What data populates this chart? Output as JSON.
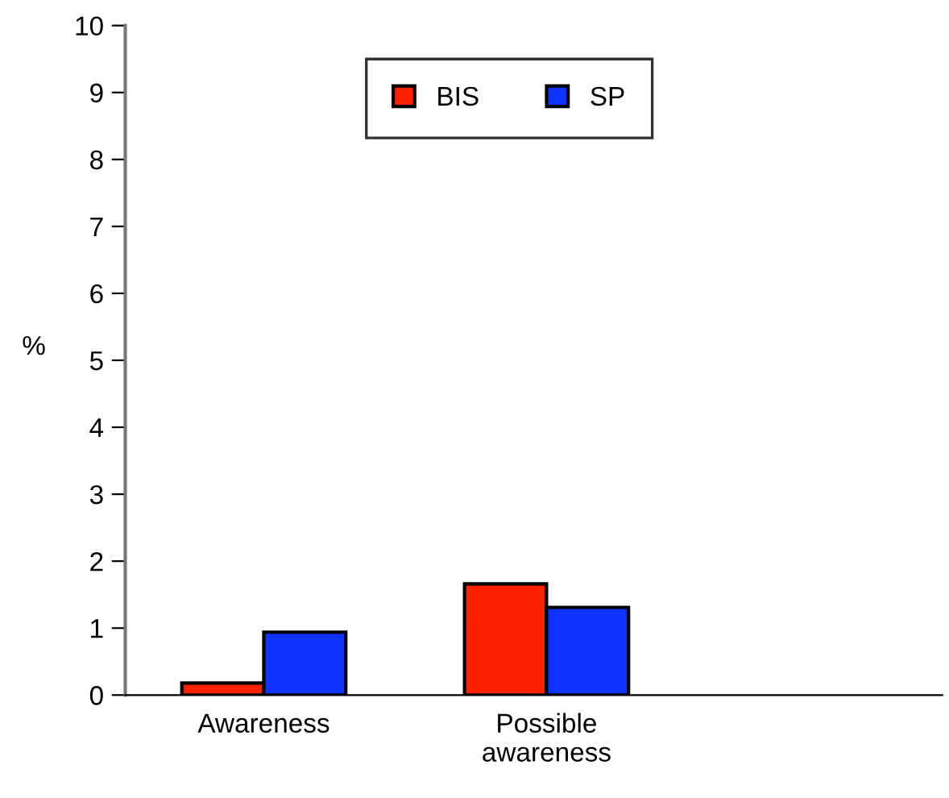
{
  "chart_data": {
    "type": "bar",
    "ylabel": "%",
    "categories": [
      "Awareness",
      "Possible\nawareness",
      null
    ],
    "series": [
      {
        "name": "BIS",
        "color": "#ff2200",
        "values": [
          0.18,
          1.66,
          null
        ]
      },
      {
        "name": "SP",
        "color": "#1133ff",
        "values": [
          0.94,
          1.31,
          null
        ]
      }
    ],
    "ylim": [
      0,
      10
    ],
    "yticks": [
      0,
      1,
      2,
      3,
      4,
      5,
      6,
      7,
      8,
      9,
      10
    ],
    "grid": false,
    "legend": "top"
  }
}
